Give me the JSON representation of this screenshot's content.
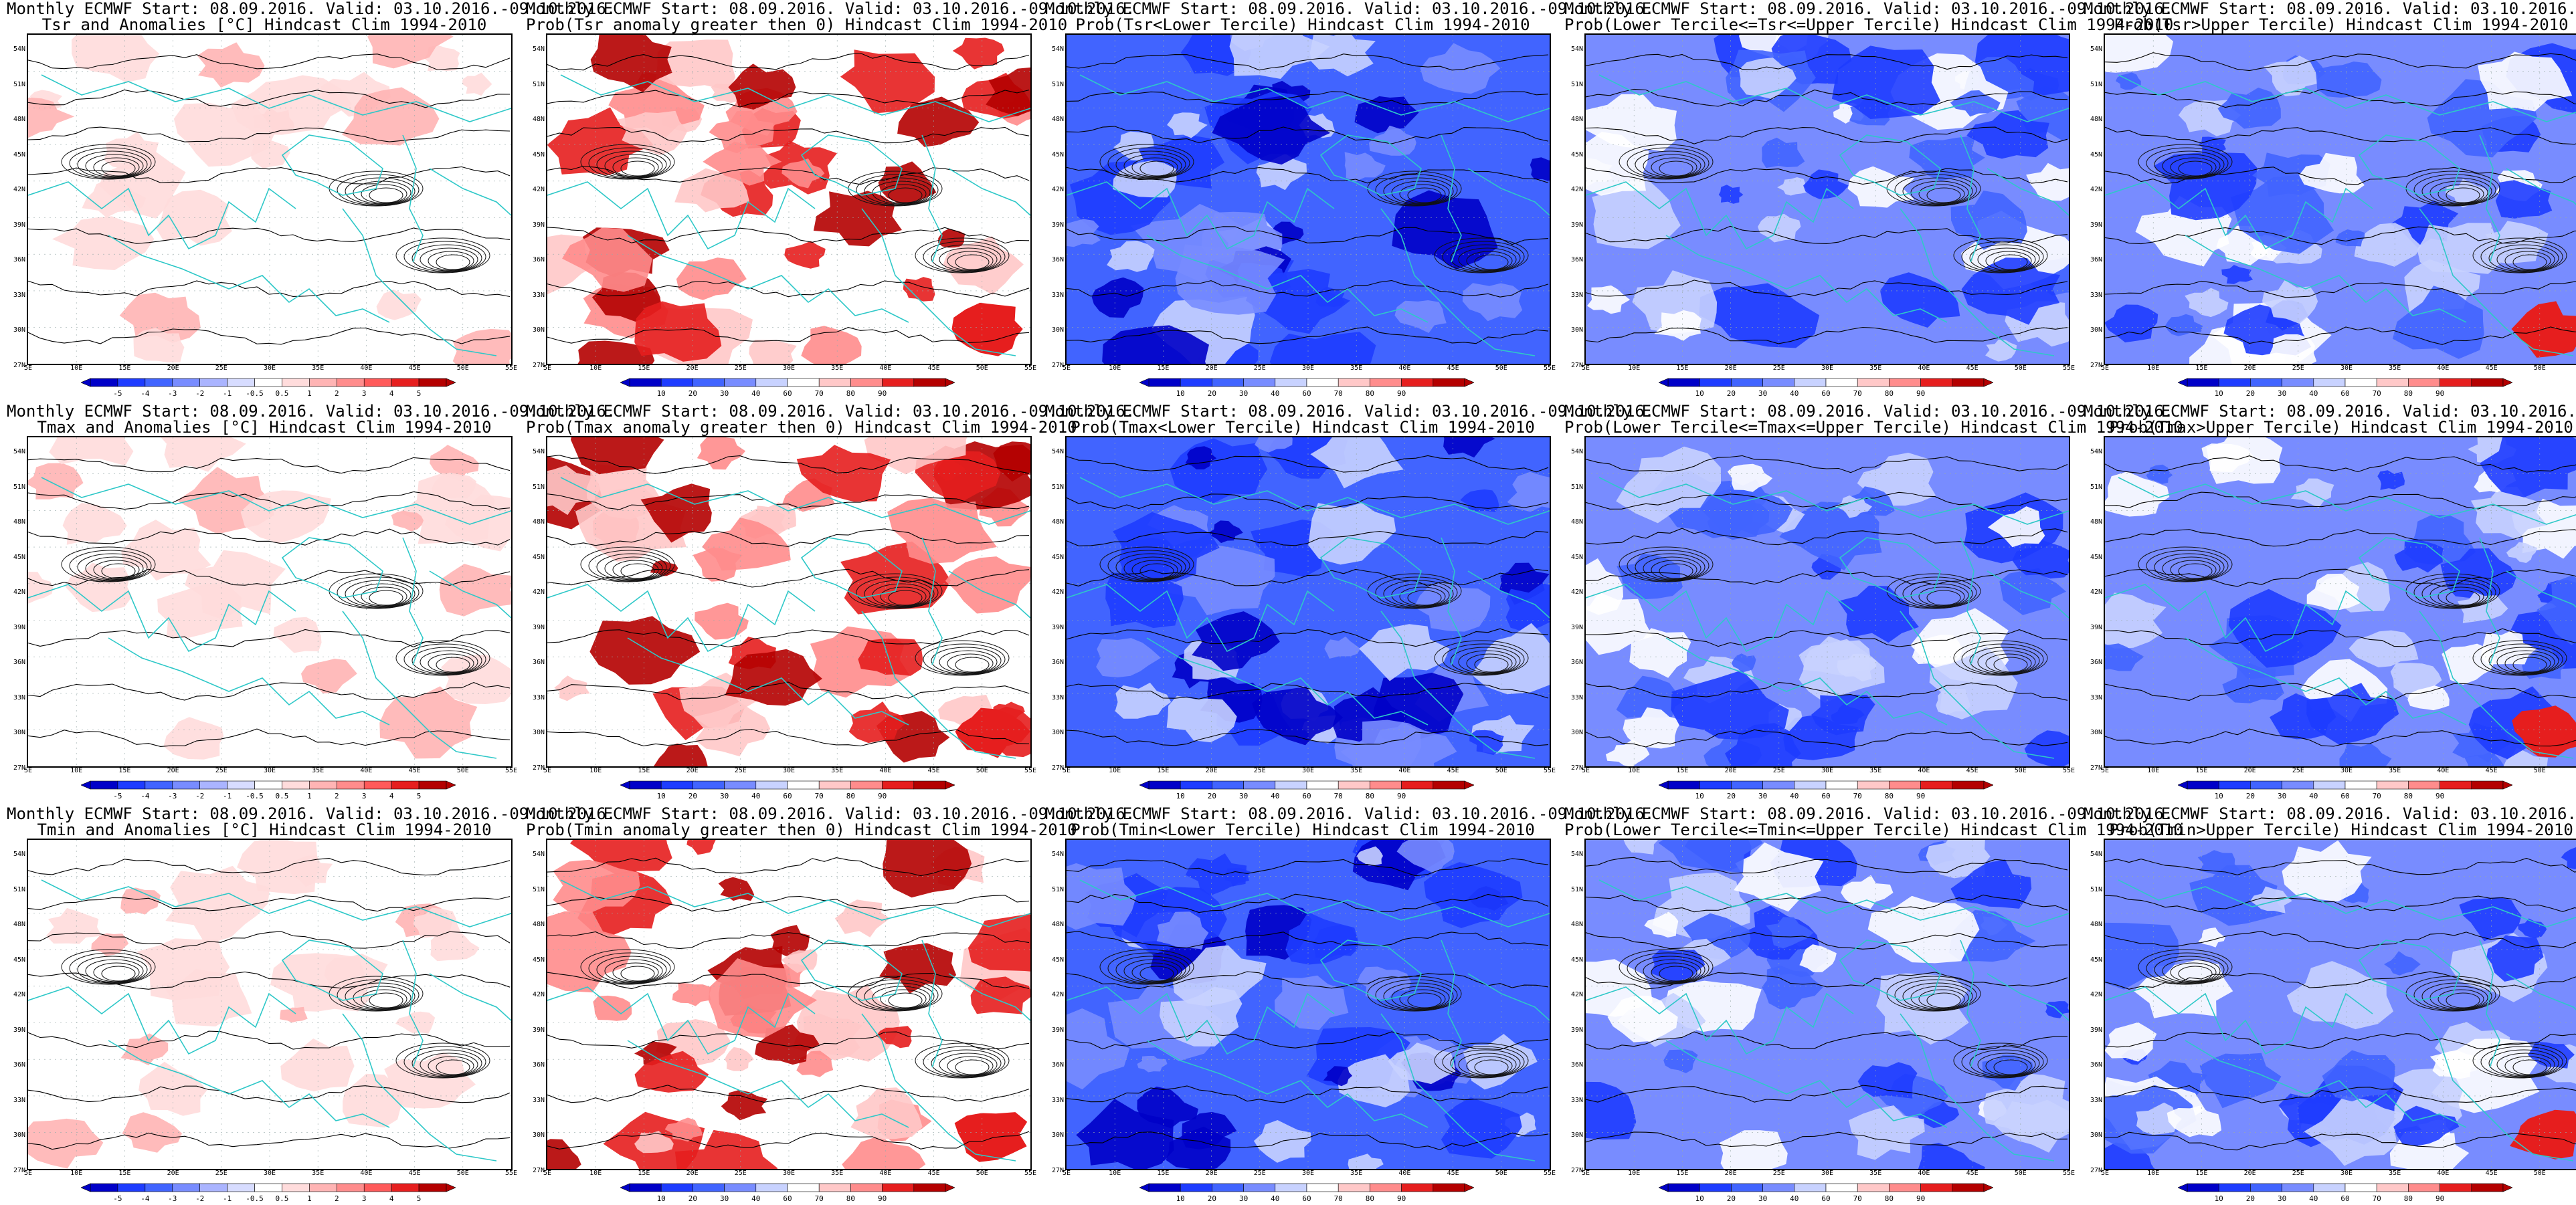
{
  "titles": {
    "header": "Monthly ECMWF Start: 08.09.2016. Valid: 03.10.2016.-09.10.2016.",
    "tsr_anom": "Tsr and Anomalies [°C] Hindcast Clim 1994-2010",
    "tsr_pos": "Prob(Tsr anomaly greater then 0) Hindcast Clim 1994-2010",
    "tsr_low": "Prob(Tsr<Lower Tercile) Hindcast Clim 1994-2010",
    "tsr_mid": "Prob(Lower Tercile<=Tsr<=Upper Tercile) Hindcast Clim 1994-2010",
    "tsr_up": "Prob(Tsr>Upper Tercile) Hindcast Clim 1994-2010",
    "tmax_anom": "Tmax and Anomalies [°C] Hindcast Clim 1994-2010",
    "tmax_pos": "Prob(Tmax anomaly greater then 0) Hindcast Clim 1994-2010",
    "tmax_low": "Prob(Tmax<Lower Tercile) Hindcast Clim 1994-2010",
    "tmax_mid": "Prob(Lower Tercile<=Tmax<=Upper Tercile) Hindcast Clim 1994-2010",
    "tmax_up": "Prob(Tmax>Upper Tercile) Hindcast Clim 1994-2010",
    "tmin_anom": "Tmin and Anomalies [°C] Hindcast Clim 1994-2010",
    "tmin_pos": "Prob(Tmin anomaly greater then 0) Hindcast Clim 1994-2010",
    "tmin_low": "Prob(Tmin<Lower Tercile) Hindcast Clim 1994-2010",
    "tmin_mid": "Prob(Lower Tercile<=Tmin<=Upper Tercile) Hindcast Clim 1994-2010",
    "tmin_up": "Prob(Tmin>Upper Tercile) Hindcast Clim 1994-2010"
  },
  "lat_labels": [
    "54N",
    "51N",
    "48N",
    "45N",
    "42N",
    "39N",
    "36N",
    "33N",
    "30N",
    "27N"
  ],
  "lon_labels": [
    "5E",
    "10E",
    "15E",
    "20E",
    "25E",
    "30E",
    "35E",
    "40E",
    "45E",
    "50E",
    "55E"
  ],
  "scales": {
    "anomaly": {
      "labels": [
        "-5",
        "-4",
        "-3",
        "-2",
        "-1",
        "-0.5",
        "0.5",
        "1",
        "2",
        "3",
        "4",
        "5"
      ],
      "colors": [
        "#0000c8",
        "#1e3cff",
        "#4164ff",
        "#788cff",
        "#aab4ff",
        "#d7dcff",
        "#ffffff",
        "#ffdcdc",
        "#ffb4b4",
        "#ff8c8c",
        "#ff5a5a",
        "#e61e1e",
        "#b40000"
      ]
    },
    "probability": {
      "labels": [
        "10",
        "20",
        "30",
        "40",
        "60",
        "70",
        "80",
        "90"
      ],
      "colors": [
        "#0000c8",
        "#1e3cff",
        "#4164ff",
        "#788cff",
        "#c8d2ff",
        "#ffffff",
        "#ffc8c8",
        "#ff8c8c",
        "#e61e1e",
        "#b40000"
      ]
    }
  },
  "map_style": {
    "coast_color": "#2ec8c8",
    "contour_color": "#000000",
    "land_fill": "#ffffff"
  },
  "panels": [
    {
      "id": "tsr-anomalies",
      "title_key": "tsr_anom",
      "scale": "anomaly",
      "mode": "anom_warm_light",
      "colorbar": true
    },
    {
      "id": "tsr-prob-positive",
      "title_key": "tsr_pos",
      "scale": "probability",
      "mode": "warm",
      "colorbar": true
    },
    {
      "id": "tsr-prob-lower",
      "title_key": "tsr_low",
      "scale": "probability",
      "mode": "cold_strong",
      "colorbar": true
    },
    {
      "id": "tsr-prob-middle",
      "title_key": "tsr_mid",
      "scale": "probability",
      "mode": "cold_mid",
      "colorbar": true
    },
    {
      "id": "tsr-prob-upper",
      "title_key": "tsr_up",
      "scale": "probability",
      "mode": "cold_light",
      "colorbar": true
    },
    {
      "id": "tmax-anomalies",
      "title_key": "tmax_anom",
      "scale": "anomaly",
      "mode": "anom_warm_light",
      "colorbar": true
    },
    {
      "id": "tmax-prob-positive",
      "title_key": "tmax_pos",
      "scale": "probability",
      "mode": "warm",
      "colorbar": true
    },
    {
      "id": "tmax-prob-lower",
      "title_key": "tmax_low",
      "scale": "probability",
      "mode": "cold_strong",
      "colorbar": true
    },
    {
      "id": "tmax-prob-middle",
      "title_key": "tmax_mid",
      "scale": "probability",
      "mode": "cold_mid",
      "colorbar": true
    },
    {
      "id": "tmax-prob-upper",
      "title_key": "tmax_up",
      "scale": "probability",
      "mode": "cold_light",
      "colorbar": true
    },
    {
      "id": "tmin-anomalies",
      "title_key": "tmin_anom",
      "scale": "anomaly",
      "mode": "anom_warm_light",
      "colorbar": true
    },
    {
      "id": "tmin-prob-positive",
      "title_key": "tmin_pos",
      "scale": "probability",
      "mode": "warm",
      "colorbar": true
    },
    {
      "id": "tmin-prob-lower",
      "title_key": "tmin_low",
      "scale": "probability",
      "mode": "cold_strong",
      "colorbar": true
    },
    {
      "id": "tmin-prob-middle",
      "title_key": "tmin_mid",
      "scale": "probability",
      "mode": "cold_mid",
      "colorbar": true
    },
    {
      "id": "tmin-prob-upper",
      "title_key": "tmin_up",
      "scale": "probability",
      "mode": "cold_light",
      "colorbar": true
    }
  ]
}
